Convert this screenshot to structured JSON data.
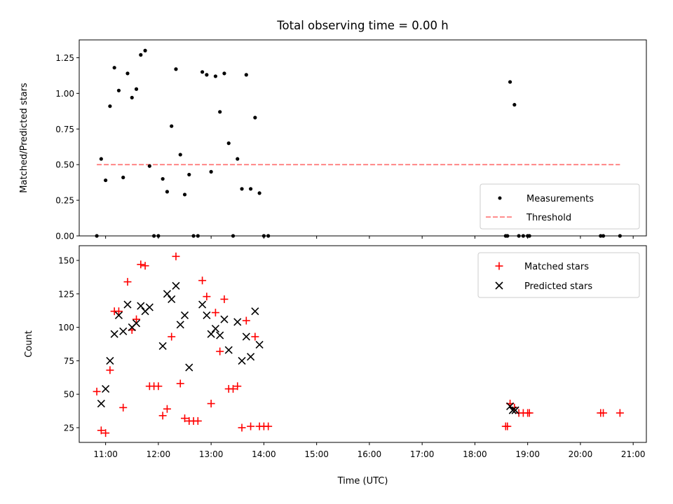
{
  "chart_data": [
    {
      "type": "scatter",
      "title": "Total observing time = 0.00 h",
      "xlabel": "",
      "ylabel": "Matched/Predicted stars",
      "xlim": [
        "10:30",
        "21:15"
      ],
      "ylim": [
        0,
        1.375
      ],
      "yticks": [
        0,
        0.25,
        0.5,
        0.75,
        1.0,
        1.25
      ],
      "ytick_labels": [
        "0.00",
        "0.25",
        "0.50",
        "0.75",
        "1.00",
        "1.25"
      ],
      "legend": "bottom-right",
      "threshold": {
        "name": "Threshold",
        "value": 0.5,
        "x_start": "10:50",
        "x_end": "20:45",
        "color": "#ff7f7f"
      },
      "series": [
        {
          "name": "Measurements",
          "color": "#000000",
          "marker": "dot",
          "x": [
            "10:50",
            "10:55",
            "11:00",
            "11:05",
            "11:10",
            "11:15",
            "11:20",
            "11:25",
            "11:30",
            "11:35",
            "11:40",
            "11:45",
            "11:50",
            "11:55",
            "12:00",
            "12:05",
            "12:10",
            "12:15",
            "12:20",
            "12:25",
            "12:30",
            "12:35",
            "12:40",
            "12:45",
            "12:50",
            "12:55",
            "13:00",
            "13:05",
            "13:10",
            "13:15",
            "13:20",
            "13:25",
            "13:30",
            "13:35",
            "13:40",
            "13:45",
            "13:50",
            "13:55",
            "14:00",
            "14:05",
            "18:35",
            "18:37",
            "18:40",
            "18:45",
            "18:50",
            "18:55",
            "19:00",
            "19:02",
            "20:23",
            "20:26",
            "20:45"
          ],
          "y": [
            0.0,
            0.54,
            0.39,
            0.91,
            1.18,
            1.02,
            0.41,
            1.14,
            0.97,
            1.03,
            1.27,
            1.3,
            0.49,
            0.0,
            0.0,
            0.4,
            0.31,
            0.77,
            1.17,
            0.57,
            0.29,
            0.43,
            0.0,
            0.0,
            1.15,
            1.13,
            0.45,
            1.12,
            0.87,
            1.14,
            0.65,
            0.0,
            0.54,
            0.33,
            1.13,
            0.33,
            0.83,
            0.3,
            0.0,
            0.0,
            0.0,
            0.0,
            1.08,
            0.92,
            0.0,
            0.0,
            0.0,
            0.0,
            0.0,
            0.0,
            0.0
          ]
        }
      ]
    },
    {
      "type": "scatter",
      "title": "",
      "xlabel": "Time (UTC)",
      "ylabel": "Count",
      "xlim": [
        "10:30",
        "21:15"
      ],
      "ylim": [
        14,
        161
      ],
      "yticks": [
        25,
        50,
        75,
        100,
        125,
        150
      ],
      "xticks": [
        "11:00",
        "12:00",
        "13:00",
        "14:00",
        "15:00",
        "16:00",
        "17:00",
        "18:00",
        "19:00",
        "20:00",
        "21:00"
      ],
      "legend": "top-right",
      "series": [
        {
          "name": "Matched stars",
          "color": "#ff0000",
          "marker": "plus",
          "x": [
            "10:50",
            "10:55",
            "11:00",
            "11:05",
            "11:10",
            "11:15",
            "11:20",
            "11:25",
            "11:30",
            "11:35",
            "11:40",
            "11:45",
            "11:50",
            "11:55",
            "12:00",
            "12:05",
            "12:10",
            "12:15",
            "12:20",
            "12:25",
            "12:30",
            "12:35",
            "12:40",
            "12:45",
            "12:50",
            "12:55",
            "13:00",
            "13:05",
            "13:10",
            "13:15",
            "13:20",
            "13:25",
            "13:30",
            "13:35",
            "13:40",
            "13:45",
            "13:50",
            "13:55",
            "14:00",
            "14:05",
            "18:35",
            "18:37",
            "18:40",
            "18:45",
            "18:50",
            "18:55",
            "19:00",
            "19:02",
            "20:23",
            "20:26",
            "20:45"
          ],
          "y": [
            52,
            23,
            21,
            68,
            112,
            112,
            40,
            134,
            98,
            106,
            147,
            146,
            56,
            56,
            56,
            34,
            39,
            93,
            153,
            58,
            32,
            30,
            30,
            30,
            135,
            123,
            43,
            111,
            82,
            121,
            54,
            54,
            56,
            25,
            105,
            26,
            93,
            26,
            26,
            26,
            26,
            26,
            43,
            40,
            36,
            36,
            36,
            36,
            36,
            36,
            36
          ]
        },
        {
          "name": "Predicted stars",
          "color": "#000000",
          "marker": "x",
          "x": [
            "10:55",
            "11:00",
            "11:05",
            "11:10",
            "11:15",
            "11:20",
            "11:25",
            "11:30",
            "11:35",
            "11:40",
            "11:45",
            "11:50",
            "12:05",
            "12:10",
            "12:15",
            "12:20",
            "12:25",
            "12:30",
            "12:35",
            "12:50",
            "12:55",
            "13:00",
            "13:05",
            "13:10",
            "13:15",
            "13:20",
            "13:30",
            "13:35",
            "13:40",
            "13:45",
            "13:50",
            "13:55",
            "18:40",
            "18:43",
            "18:46"
          ],
          "y": [
            43,
            54,
            75,
            95,
            109,
            97,
            117,
            100,
            103,
            116,
            112,
            115,
            86,
            125,
            121,
            131,
            102,
            109,
            70,
            117,
            109,
            95,
            99,
            94,
            106,
            83,
            104,
            75,
            93,
            78,
            112,
            87,
            41,
            38,
            38
          ]
        }
      ]
    }
  ]
}
